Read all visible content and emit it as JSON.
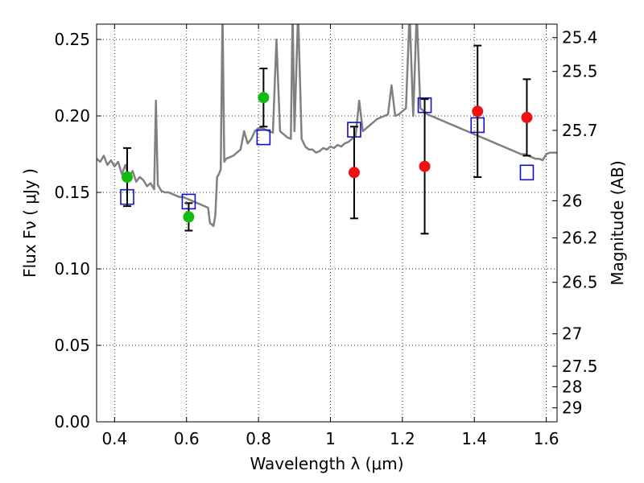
{
  "chart_data": {
    "type": "scatter",
    "xlabel": "Wavelength  λ (μm)",
    "ylabel": "Flux  Fν  ( μJy )",
    "y2label": "Magnitude (AB)",
    "xlim": [
      0.35,
      1.63
    ],
    "ylim": [
      0.0,
      0.26
    ],
    "grid": true,
    "x_ticks": [
      {
        "value": 0.4,
        "label": "0.4"
      },
      {
        "value": 0.6,
        "label": "0.6"
      },
      {
        "value": 0.8,
        "label": "0.8"
      },
      {
        "value": 1.0,
        "label": "1"
      },
      {
        "value": 1.2,
        "label": "1.2"
      },
      {
        "value": 1.4,
        "label": "1.4"
      },
      {
        "value": 1.6,
        "label": "1.6"
      }
    ],
    "y_ticks": [
      {
        "value": 0.0,
        "label": "0.00"
      },
      {
        "value": 0.05,
        "label": "0.05"
      },
      {
        "value": 0.1,
        "label": "0.10"
      },
      {
        "value": 0.15,
        "label": "0.15"
      },
      {
        "value": 0.2,
        "label": "0.20"
      },
      {
        "value": 0.25,
        "label": "0.25"
      }
    ],
    "magnitude_ticks": [
      {
        "value": 25.4,
        "label": "25.4"
      },
      {
        "value": 25.5,
        "label": "25.5"
      },
      {
        "value": 25.7,
        "label": "25.7"
      },
      {
        "value": 26.0,
        "label": "26"
      },
      {
        "value": 26.2,
        "label": "26.2"
      },
      {
        "value": 26.5,
        "label": "26.5"
      },
      {
        "value": 27.0,
        "label": "27"
      },
      {
        "value": 27.5,
        "label": "27.5"
      },
      {
        "value": 28.0,
        "label": "28"
      },
      {
        "value": 29.0,
        "label": "29"
      }
    ],
    "colors": {
      "model_spectrum": "#808080",
      "green_points": "#11bb11",
      "red_points": "#ee1111",
      "model_photometry": "#1010cc",
      "error_bars": "#000000"
    },
    "series": [
      {
        "name": "model spectrum",
        "style": "line",
        "points": [
          [
            0.35,
            0.172
          ],
          [
            0.36,
            0.17
          ],
          [
            0.37,
            0.174
          ],
          [
            0.38,
            0.168
          ],
          [
            0.39,
            0.171
          ],
          [
            0.4,
            0.167
          ],
          [
            0.41,
            0.17
          ],
          [
            0.42,
            0.162
          ],
          [
            0.43,
            0.168
          ],
          [
            0.44,
            0.16
          ],
          [
            0.45,
            0.164
          ],
          [
            0.46,
            0.157
          ],
          [
            0.47,
            0.16
          ],
          [
            0.48,
            0.158
          ],
          [
            0.49,
            0.154
          ],
          [
            0.5,
            0.156
          ],
          [
            0.51,
            0.152
          ],
          [
            0.515,
            0.21
          ],
          [
            0.52,
            0.155
          ],
          [
            0.53,
            0.151
          ],
          [
            0.54,
            0.15
          ],
          [
            0.55,
            0.15
          ],
          [
            0.56,
            0.149
          ],
          [
            0.57,
            0.148
          ],
          [
            0.58,
            0.147
          ],
          [
            0.59,
            0.147
          ],
          [
            0.6,
            0.146
          ],
          [
            0.61,
            0.145
          ],
          [
            0.62,
            0.144
          ],
          [
            0.63,
            0.143
          ],
          [
            0.64,
            0.142
          ],
          [
            0.65,
            0.141
          ],
          [
            0.66,
            0.14
          ],
          [
            0.665,
            0.13
          ],
          [
            0.675,
            0.128
          ],
          [
            0.68,
            0.135
          ],
          [
            0.685,
            0.16
          ],
          [
            0.69,
            0.162
          ],
          [
            0.695,
            0.165
          ],
          [
            0.7,
            0.268
          ],
          [
            0.705,
            0.17
          ],
          [
            0.71,
            0.172
          ],
          [
            0.72,
            0.173
          ],
          [
            0.73,
            0.174
          ],
          [
            0.74,
            0.176
          ],
          [
            0.75,
            0.178
          ],
          [
            0.76,
            0.19
          ],
          [
            0.77,
            0.182
          ],
          [
            0.78,
            0.185
          ],
          [
            0.79,
            0.19
          ],
          [
            0.8,
            0.192
          ],
          [
            0.81,
            0.192
          ],
          [
            0.82,
            0.191
          ],
          [
            0.83,
            0.19
          ],
          [
            0.84,
            0.189
          ],
          [
            0.85,
            0.25
          ],
          [
            0.86,
            0.19
          ],
          [
            0.87,
            0.188
          ],
          [
            0.88,
            0.186
          ],
          [
            0.89,
            0.185
          ],
          [
            0.895,
            0.268
          ],
          [
            0.9,
            0.19
          ],
          [
            0.91,
            0.268
          ],
          [
            0.92,
            0.185
          ],
          [
            0.93,
            0.18
          ],
          [
            0.94,
            0.178
          ],
          [
            0.95,
            0.178
          ],
          [
            0.96,
            0.176
          ],
          [
            0.97,
            0.177
          ],
          [
            0.98,
            0.179
          ],
          [
            0.99,
            0.178
          ],
          [
            1.0,
            0.18
          ],
          [
            1.01,
            0.179
          ],
          [
            1.02,
            0.181
          ],
          [
            1.03,
            0.18
          ],
          [
            1.04,
            0.182
          ],
          [
            1.05,
            0.183
          ],
          [
            1.06,
            0.185
          ],
          [
            1.07,
            0.187
          ],
          [
            1.08,
            0.21
          ],
          [
            1.09,
            0.19
          ],
          [
            1.1,
            0.192
          ],
          [
            1.11,
            0.194
          ],
          [
            1.12,
            0.196
          ],
          [
            1.13,
            0.198
          ],
          [
            1.14,
            0.199
          ],
          [
            1.15,
            0.2
          ],
          [
            1.16,
            0.201
          ],
          [
            1.17,
            0.22
          ],
          [
            1.18,
            0.2
          ],
          [
            1.19,
            0.201
          ],
          [
            1.2,
            0.203
          ],
          [
            1.21,
            0.205
          ],
          [
            1.22,
            0.268
          ],
          [
            1.23,
            0.2
          ],
          [
            1.24,
            0.268
          ],
          [
            1.25,
            0.205
          ],
          [
            1.26,
            0.203
          ],
          [
            1.27,
            0.201
          ],
          [
            1.28,
            0.2
          ],
          [
            1.29,
            0.199
          ],
          [
            1.3,
            0.198
          ],
          [
            1.31,
            0.197
          ],
          [
            1.32,
            0.196
          ],
          [
            1.33,
            0.195
          ],
          [
            1.34,
            0.194
          ],
          [
            1.35,
            0.193
          ],
          [
            1.36,
            0.192
          ],
          [
            1.37,
            0.191
          ],
          [
            1.38,
            0.19
          ],
          [
            1.39,
            0.189
          ],
          [
            1.4,
            0.188
          ],
          [
            1.41,
            0.187
          ],
          [
            1.42,
            0.186
          ],
          [
            1.43,
            0.185
          ],
          [
            1.44,
            0.184
          ],
          [
            1.45,
            0.183
          ],
          [
            1.46,
            0.182
          ],
          [
            1.47,
            0.181
          ],
          [
            1.48,
            0.18
          ],
          [
            1.49,
            0.179
          ],
          [
            1.5,
            0.178
          ],
          [
            1.51,
            0.177
          ],
          [
            1.52,
            0.176
          ],
          [
            1.53,
            0.175
          ],
          [
            1.54,
            0.175
          ],
          [
            1.55,
            0.174
          ],
          [
            1.56,
            0.173
          ],
          [
            1.57,
            0.172
          ],
          [
            1.58,
            0.172
          ],
          [
            1.59,
            0.171
          ],
          [
            1.6,
            0.175
          ],
          [
            1.61,
            0.176
          ],
          [
            1.62,
            0.176
          ],
          [
            1.63,
            0.176
          ]
        ]
      },
      {
        "name": "observed photometry (green)",
        "style": "circle",
        "points": [
          {
            "x": 0.435,
            "y": 0.16,
            "err": 0.019
          },
          {
            "x": 0.606,
            "y": 0.134,
            "err": 0.009
          },
          {
            "x": 0.814,
            "y": 0.212,
            "err": 0.019
          }
        ]
      },
      {
        "name": "observed photometry (red)",
        "style": "circle",
        "points": [
          {
            "x": 1.066,
            "y": 0.163,
            "err": 0.03
          },
          {
            "x": 1.262,
            "y": 0.167,
            "err": 0.044
          },
          {
            "x": 1.409,
            "y": 0.203,
            "err": 0.043
          },
          {
            "x": 1.546,
            "y": 0.199,
            "err": 0.025
          }
        ]
      },
      {
        "name": "model photometry",
        "style": "square",
        "points": [
          {
            "x": 0.435,
            "y": 0.147
          },
          {
            "x": 0.606,
            "y": 0.144
          },
          {
            "x": 0.814,
            "y": 0.186
          },
          {
            "x": 1.066,
            "y": 0.191
          },
          {
            "x": 1.262,
            "y": 0.207
          },
          {
            "x": 1.409,
            "y": 0.194
          },
          {
            "x": 1.546,
            "y": 0.163
          }
        ]
      }
    ]
  }
}
